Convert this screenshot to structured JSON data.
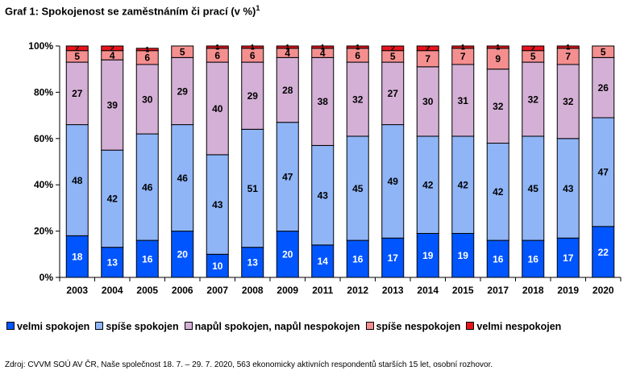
{
  "header": {
    "title": "Graf 1: Spokojenost se zaměstnáním či prací (v %)",
    "title_superscript": "1"
  },
  "chart_data": {
    "type": "bar",
    "stacked": true,
    "categories": [
      "2003",
      "2004",
      "2005",
      "2006",
      "2007",
      "2008",
      "2009",
      "2011",
      "2012",
      "2013",
      "2014",
      "2015",
      "2017",
      "2018",
      "2019",
      "2020"
    ],
    "series": [
      {
        "name": "velmi spokojen",
        "color": "#0055ff",
        "values": [
          18,
          13,
          16,
          20,
          10,
          13,
          20,
          14,
          16,
          17,
          19,
          19,
          16,
          16,
          17,
          22
        ]
      },
      {
        "name": "spíše spokojen",
        "color": "#8fb5f7",
        "values": [
          48,
          42,
          46,
          46,
          43,
          51,
          47,
          43,
          45,
          49,
          42,
          42,
          42,
          45,
          43,
          47
        ]
      },
      {
        "name": "napůl spokojen, napůl nespokojen",
        "color": "#d4b0d6",
        "values": [
          27,
          39,
          30,
          29,
          40,
          29,
          28,
          38,
          32,
          27,
          30,
          31,
          32,
          32,
          32,
          26
        ]
      },
      {
        "name": "spíše nespokojen",
        "color": "#f58f8f",
        "values": [
          5,
          4,
          6,
          5,
          6,
          6,
          4,
          4,
          6,
          5,
          7,
          7,
          9,
          5,
          7,
          5
        ]
      },
      {
        "name": "velmi nespokojen",
        "color": "#e8141c",
        "values": [
          2,
          2,
          1,
          0,
          1,
          1,
          1,
          1,
          1,
          2,
          2,
          1,
          1,
          2,
          1,
          0
        ]
      }
    ],
    "y_ticks": [
      "0%",
      "20%",
      "40%",
      "60%",
      "80%",
      "100%"
    ],
    "ylim": [
      0,
      100
    ],
    "grid": false,
    "legend_position": "bottom"
  },
  "footer": {
    "source": "Zdroj: CVVM SOÚ AV ČR, Naše společnost 18. 7. – 29. 7. 2020, 563 ekonomicky aktivních respondentů starších 15 let, osobní rozhovor."
  }
}
